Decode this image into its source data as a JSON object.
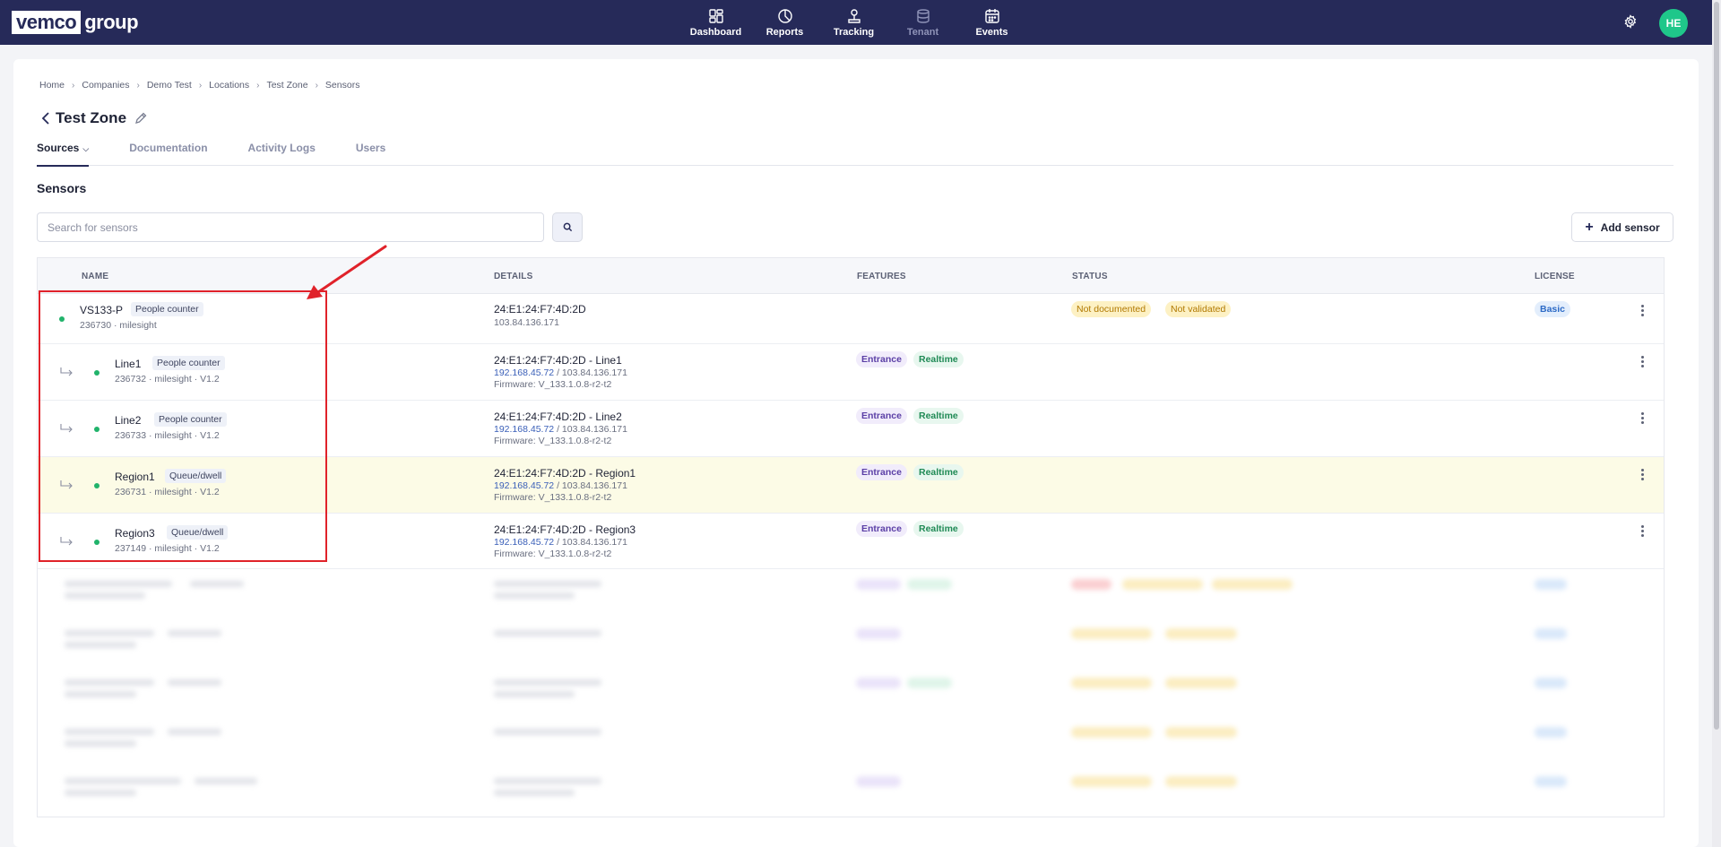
{
  "nav": {
    "logo_box": "vemco",
    "logo_rest": "group",
    "items": [
      {
        "label": "Dashboard",
        "icon": "dashboard-icon"
      },
      {
        "label": "Reports",
        "icon": "pie-chart-icon"
      },
      {
        "label": "Tracking",
        "icon": "tracking-icon"
      },
      {
        "label": "Tenant",
        "icon": "database-icon"
      },
      {
        "label": "Events",
        "icon": "calendar-icon"
      }
    ],
    "avatar": "HE"
  },
  "breadcrumb": [
    "Home",
    "Companies",
    "Demo Test",
    "Locations",
    "Test Zone",
    "Sensors"
  ],
  "page_title": "Test Zone",
  "tabs": [
    {
      "label": "Sources"
    },
    {
      "label": "Documentation"
    },
    {
      "label": "Activity Logs"
    },
    {
      "label": "Users"
    }
  ],
  "section_title": "Sensors",
  "search": {
    "placeholder": "Search for sensors"
  },
  "add_sensor_label": "Add sensor",
  "table": {
    "headers": [
      "NAME",
      "DETAILS",
      "FEATURES",
      "STATUS",
      "LICENSE"
    ],
    "rows": [
      {
        "name": "VS133-P",
        "type": "People counter",
        "meta": "236730 · milesight",
        "details_main": "24:E1:24:F7:4D:2D",
        "details_ip_local": "",
        "details_ip_public": "103.84.136.171",
        "firmware": "",
        "features": [],
        "status": [
          "Not documented",
          "Not validated"
        ],
        "license": "Basic"
      },
      {
        "name": "Line1",
        "type": "People counter",
        "meta": "236732 · milesight · V1.2",
        "details_main": "24:E1:24:F7:4D:2D - Line1",
        "details_ip_local": "192.168.45.72",
        "details_ip_public": "103.84.136.171",
        "firmware": "Firmware: V_133.1.0.8-r2-t2",
        "features": [
          "Entrance",
          "Realtime"
        ],
        "status": [],
        "license": ""
      },
      {
        "name": "Line2",
        "type": "People counter",
        "meta": "236733 · milesight · V1.2",
        "details_main": "24:E1:24:F7:4D:2D - Line2",
        "details_ip_local": "192.168.45.72",
        "details_ip_public": "103.84.136.171",
        "firmware": "Firmware: V_133.1.0.8-r2-t2",
        "features": [
          "Entrance",
          "Realtime"
        ],
        "status": [],
        "license": ""
      },
      {
        "name": "Region1",
        "type": "Queue/dwell",
        "meta": "236731 · milesight · V1.2",
        "details_main": "24:E1:24:F7:4D:2D - Region1",
        "details_ip_local": "192.168.45.72",
        "details_ip_public": "103.84.136.171",
        "firmware": "Firmware: V_133.1.0.8-r2-t2",
        "features": [
          "Entrance",
          "Realtime"
        ],
        "status": [],
        "license": ""
      },
      {
        "name": "Region3",
        "type": "Queue/dwell",
        "meta": "237149 · milesight · V1.2",
        "details_main": "24:E1:24:F7:4D:2D - Region3",
        "details_ip_local": "192.168.45.72",
        "details_ip_public": "103.84.136.171",
        "firmware": "Firmware: V_133.1.0.8-r2-t2",
        "features": [
          "Entrance",
          "Realtime"
        ],
        "status": [],
        "license": ""
      }
    ]
  },
  "colors": {
    "nav_bg": "#262a59",
    "annotation": "#e0222a",
    "status_dot": "#21b36b",
    "highlight_row": "#fcfbe6"
  }
}
